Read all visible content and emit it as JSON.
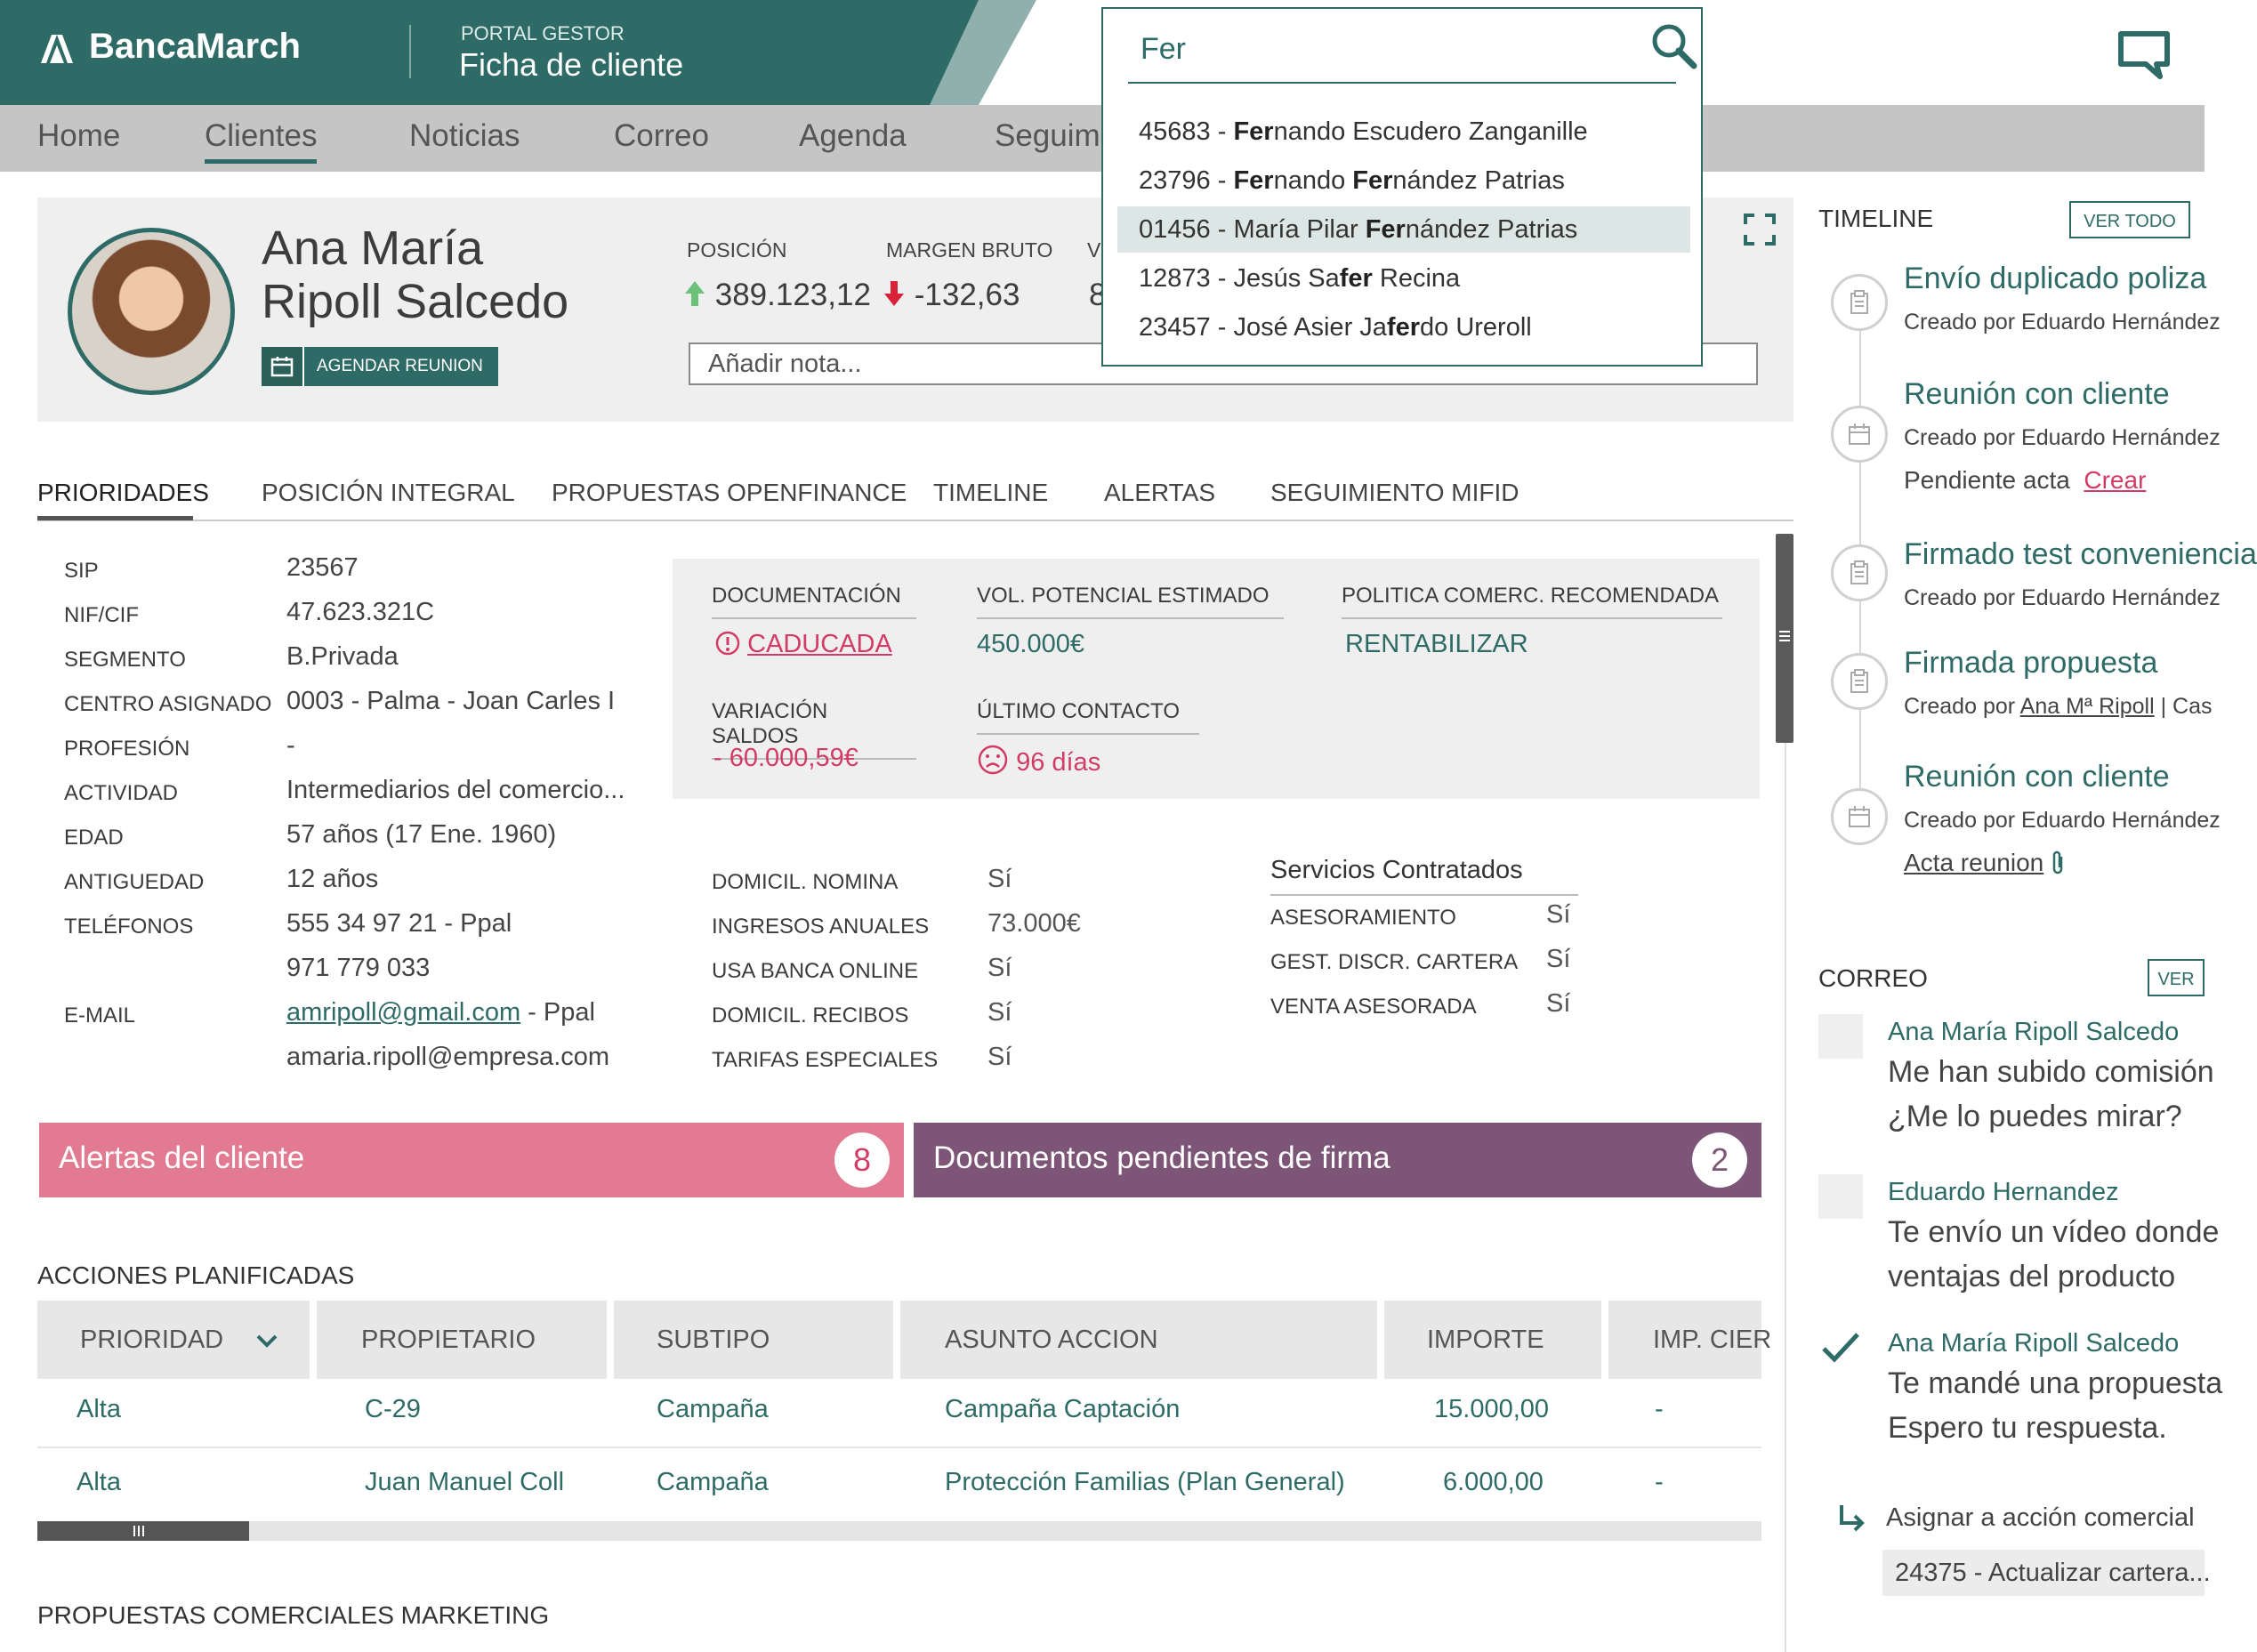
{
  "header": {
    "brand": "BancaMarch",
    "portal_label": "PORTAL GESTOR",
    "page_title": "Ficha de cliente",
    "colors": {
      "primary": "#2e6b66",
      "pink": "#e27b92",
      "purple": "#7c5577"
    }
  },
  "nav": {
    "items": [
      "Home",
      "Clientes",
      "Noticias",
      "Correo",
      "Agenda",
      "Seguim"
    ],
    "active": "Clientes"
  },
  "search": {
    "value": "Fer",
    "results": [
      {
        "code": "45683",
        "pre": "",
        "match": "Fer",
        "post": "nando Escudero Zanganille",
        "m2": "",
        "post2": ""
      },
      {
        "code": "23796",
        "pre": "",
        "match": "Fer",
        "post": "nando ",
        "m2": "Fer",
        "post2": "nández Patrias"
      },
      {
        "code": "01456",
        "pre": "María Pilar ",
        "match": "Fer",
        "post": "nández Patrias",
        "m2": "",
        "post2": ""
      },
      {
        "code": "12873",
        "pre": "Jesús Sa",
        "match": "fer",
        "post": " Recina",
        "m2": "",
        "post2": ""
      },
      {
        "code": "23457",
        "pre": "José Asier Ja",
        "match": "fer",
        "post": "do Ureroll",
        "m2": "",
        "post2": ""
      }
    ],
    "highlighted_index": 2
  },
  "client": {
    "name_line1": "Ana María",
    "name_line2": "Ripoll Salcedo",
    "schedule_button": "AGENDAR REUNION",
    "metrics": [
      {
        "label": "POSICIÓN",
        "value": "389.123,12",
        "trend": "up"
      },
      {
        "label": "MARGEN BRUTO",
        "value": "-132,63",
        "trend": "down"
      },
      {
        "label": "V",
        "value": "8"
      }
    ],
    "note_placeholder": "Añadir nota..."
  },
  "tabs": [
    "PRIORIDADES",
    "POSICIÓN INTEGRAL",
    "PROPUESTAS OPENFINANCE",
    "TIMELINE",
    "ALERTAS",
    "SEGUIMIENTO MIFID"
  ],
  "info": {
    "sip": {
      "label": "SIP",
      "value": "23567"
    },
    "nif": {
      "label": "NIF/CIF",
      "value": "47.623.321C"
    },
    "segmento": {
      "label": "SEGMENTO",
      "value": "B.Privada"
    },
    "centro": {
      "label": "CENTRO ASIGNADO",
      "value": "0003 - Palma - Joan Carles I"
    },
    "profesion": {
      "label": "PROFESIÓN",
      "value": "-"
    },
    "actividad": {
      "label": "ACTIVIDAD",
      "value": "Intermediarios del comercio..."
    },
    "edad": {
      "label": "EDAD",
      "value": "57 años  (17 Ene. 1960)"
    },
    "antiguedad": {
      "label": "ANTIGUEDAD",
      "value": "12 años"
    },
    "telefonos": {
      "label": "TELÉFONOS",
      "value1": "555 34 97 21 - Ppal",
      "value2": "971 779 033"
    },
    "email": {
      "label": "E-MAIL",
      "value1": "amripoll@gmail.com",
      "value1_suffix": " - Ppal",
      "value2": "amaria.ripoll@empresa.com"
    }
  },
  "kpis": {
    "documentacion": {
      "label": "DOCUMENTACIÓN",
      "value": "CADUCADA"
    },
    "vol_potencial": {
      "label": "VOL. POTENCIAL ESTIMADO",
      "value": "450.000€"
    },
    "politica": {
      "label": "POLITICA COMERC. RECOMENDADA",
      "value": "RENTABILIZAR"
    },
    "variacion": {
      "label": "VARIACIÓN SALDOS",
      "value": "- 60.000,59€"
    },
    "ultimo_contacto": {
      "label": "ÚLTIMO CONTACTO",
      "value": "96 días"
    }
  },
  "domicil": [
    {
      "label": "DOMICIL. NOMINA",
      "value": "Sí"
    },
    {
      "label": "INGRESOS ANUALES",
      "value": "73.000€"
    },
    {
      "label": "USA BANCA ONLINE",
      "value": "Sí"
    },
    {
      "label": "DOMICIL. RECIBOS",
      "value": "Sí"
    },
    {
      "label": "TARIFAS ESPECIALES",
      "value": "Sí"
    }
  ],
  "servicios": {
    "title": "Servicios Contratados",
    "items": [
      {
        "label": "ASESORAMIENTO",
        "value": "Sí"
      },
      {
        "label": "GEST. DISCR. CARTERA",
        "value": "Sí"
      },
      {
        "label": "VENTA ASESORADA",
        "value": "Sí"
      }
    ]
  },
  "banners": {
    "alerts": {
      "label": "Alertas del cliente",
      "count": "8"
    },
    "docs": {
      "label": "Documentos pendientes de firma",
      "count": "2"
    }
  },
  "acciones": {
    "title": "ACCIONES PLANIFICADAS",
    "columns": [
      "PRIORIDAD",
      "PROPIETARIO",
      "SUBTIPO",
      "ASUNTO ACCION",
      "IMPORTE",
      "IMP. CIER"
    ],
    "rows": [
      [
        "Alta",
        "C-29",
        "Campaña",
        "Campaña Captación",
        "15.000,00",
        "-"
      ],
      [
        "Alta",
        "Juan Manuel Coll",
        "Campaña",
        "Protección Familias (Plan General)",
        "6.000,00",
        "-"
      ]
    ],
    "next_section": "PROPUESTAS COMERCIALES MARKETING"
  },
  "timeline": {
    "title": "TIMELINE",
    "button": "VER TODO",
    "items": [
      {
        "title": "Envío duplicado poliza",
        "sub": "Creado por Eduardo Hernández"
      },
      {
        "title": "Reunión con cliente",
        "sub": "Creado por Eduardo Hernández",
        "extra": "Pendiente acta",
        "extra_link": "Crear"
      },
      {
        "title": "Firmado test conveniencia",
        "sub": "Creado por Eduardo Hernández"
      },
      {
        "title": "Firmada propuesta",
        "sub_pre": "Creado por ",
        "sub_link": "Ana Mª Ripoll",
        "sub_post": " | Cas"
      },
      {
        "title": "Reunión con cliente",
        "sub": "Creado por Eduardo Hernández",
        "link": "Acta reunion"
      }
    ]
  },
  "correo": {
    "title": "CORREO",
    "button": "VER",
    "items": [
      {
        "from": "Ana María Ripoll Salcedo",
        "line1": "Me han subido comisión",
        "line2": "¿Me lo puedes mirar?"
      },
      {
        "from": "Eduardo Hernandez",
        "line1": "Te envío un vídeo donde",
        "line2": "ventajas del producto"
      },
      {
        "from": "Ana María Ripoll Salcedo",
        "line1": "Te mandé una propuesta",
        "line2": "Espero tu respuesta."
      }
    ],
    "assign_label": "Asignar a acción comercial",
    "assign_value": "24375 - Actualizar cartera..."
  }
}
